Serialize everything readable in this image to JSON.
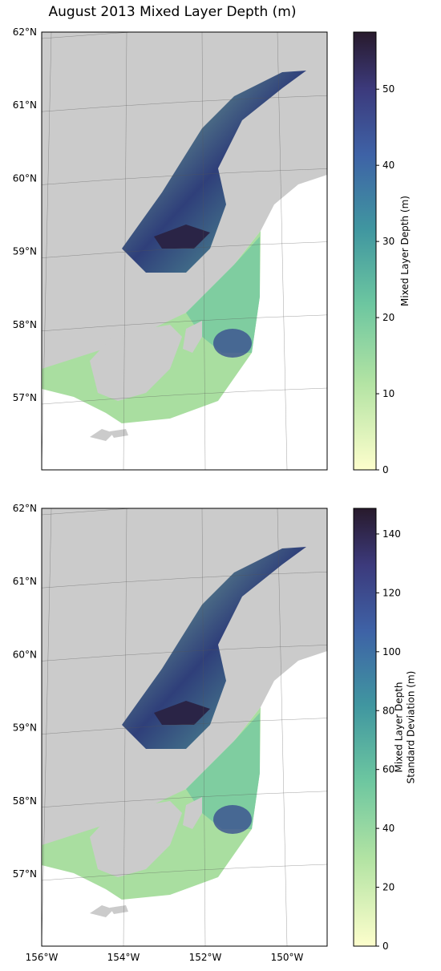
{
  "title": "August 2013 Mixed Layer Depth (m)",
  "lon_ticks": [
    {
      "value": -156,
      "label": "156°W"
    },
    {
      "value": -154,
      "label": "154°W"
    },
    {
      "value": -152,
      "label": "152°W"
    },
    {
      "value": -150,
      "label": "150°W"
    }
  ],
  "maps": [
    {
      "lat_ticks": [
        {
          "value": 62,
          "label": "62°N"
        },
        {
          "value": 61,
          "label": "61°N"
        },
        {
          "value": 60,
          "label": "60°N"
        },
        {
          "value": 59,
          "label": "59°N"
        },
        {
          "value": 58,
          "label": "58°N"
        },
        {
          "value": 57,
          "label": "57°N"
        }
      ],
      "colorbar": {
        "label": [
          "Mixed Layer Depth (m)"
        ],
        "lim": [
          0,
          57.5
        ],
        "ticks": [
          0,
          10,
          20,
          30,
          40,
          50
        ]
      }
    },
    {
      "lat_ticks": [
        {
          "value": 62,
          "label": "62°N"
        },
        {
          "value": 61,
          "label": "61°N"
        },
        {
          "value": 60,
          "label": "60°N"
        },
        {
          "value": 59,
          "label": "59°N"
        },
        {
          "value": 58,
          "label": "58°N"
        },
        {
          "value": 57,
          "label": "57°N"
        }
      ],
      "colorbar": {
        "label": [
          "Mixed Layer Depth",
          "Standard Deviation (m)"
        ],
        "lim": [
          0,
          148.7
        ],
        "ticks": [
          0,
          20,
          40,
          60,
          80,
          100,
          120,
          140
        ]
      }
    }
  ]
}
